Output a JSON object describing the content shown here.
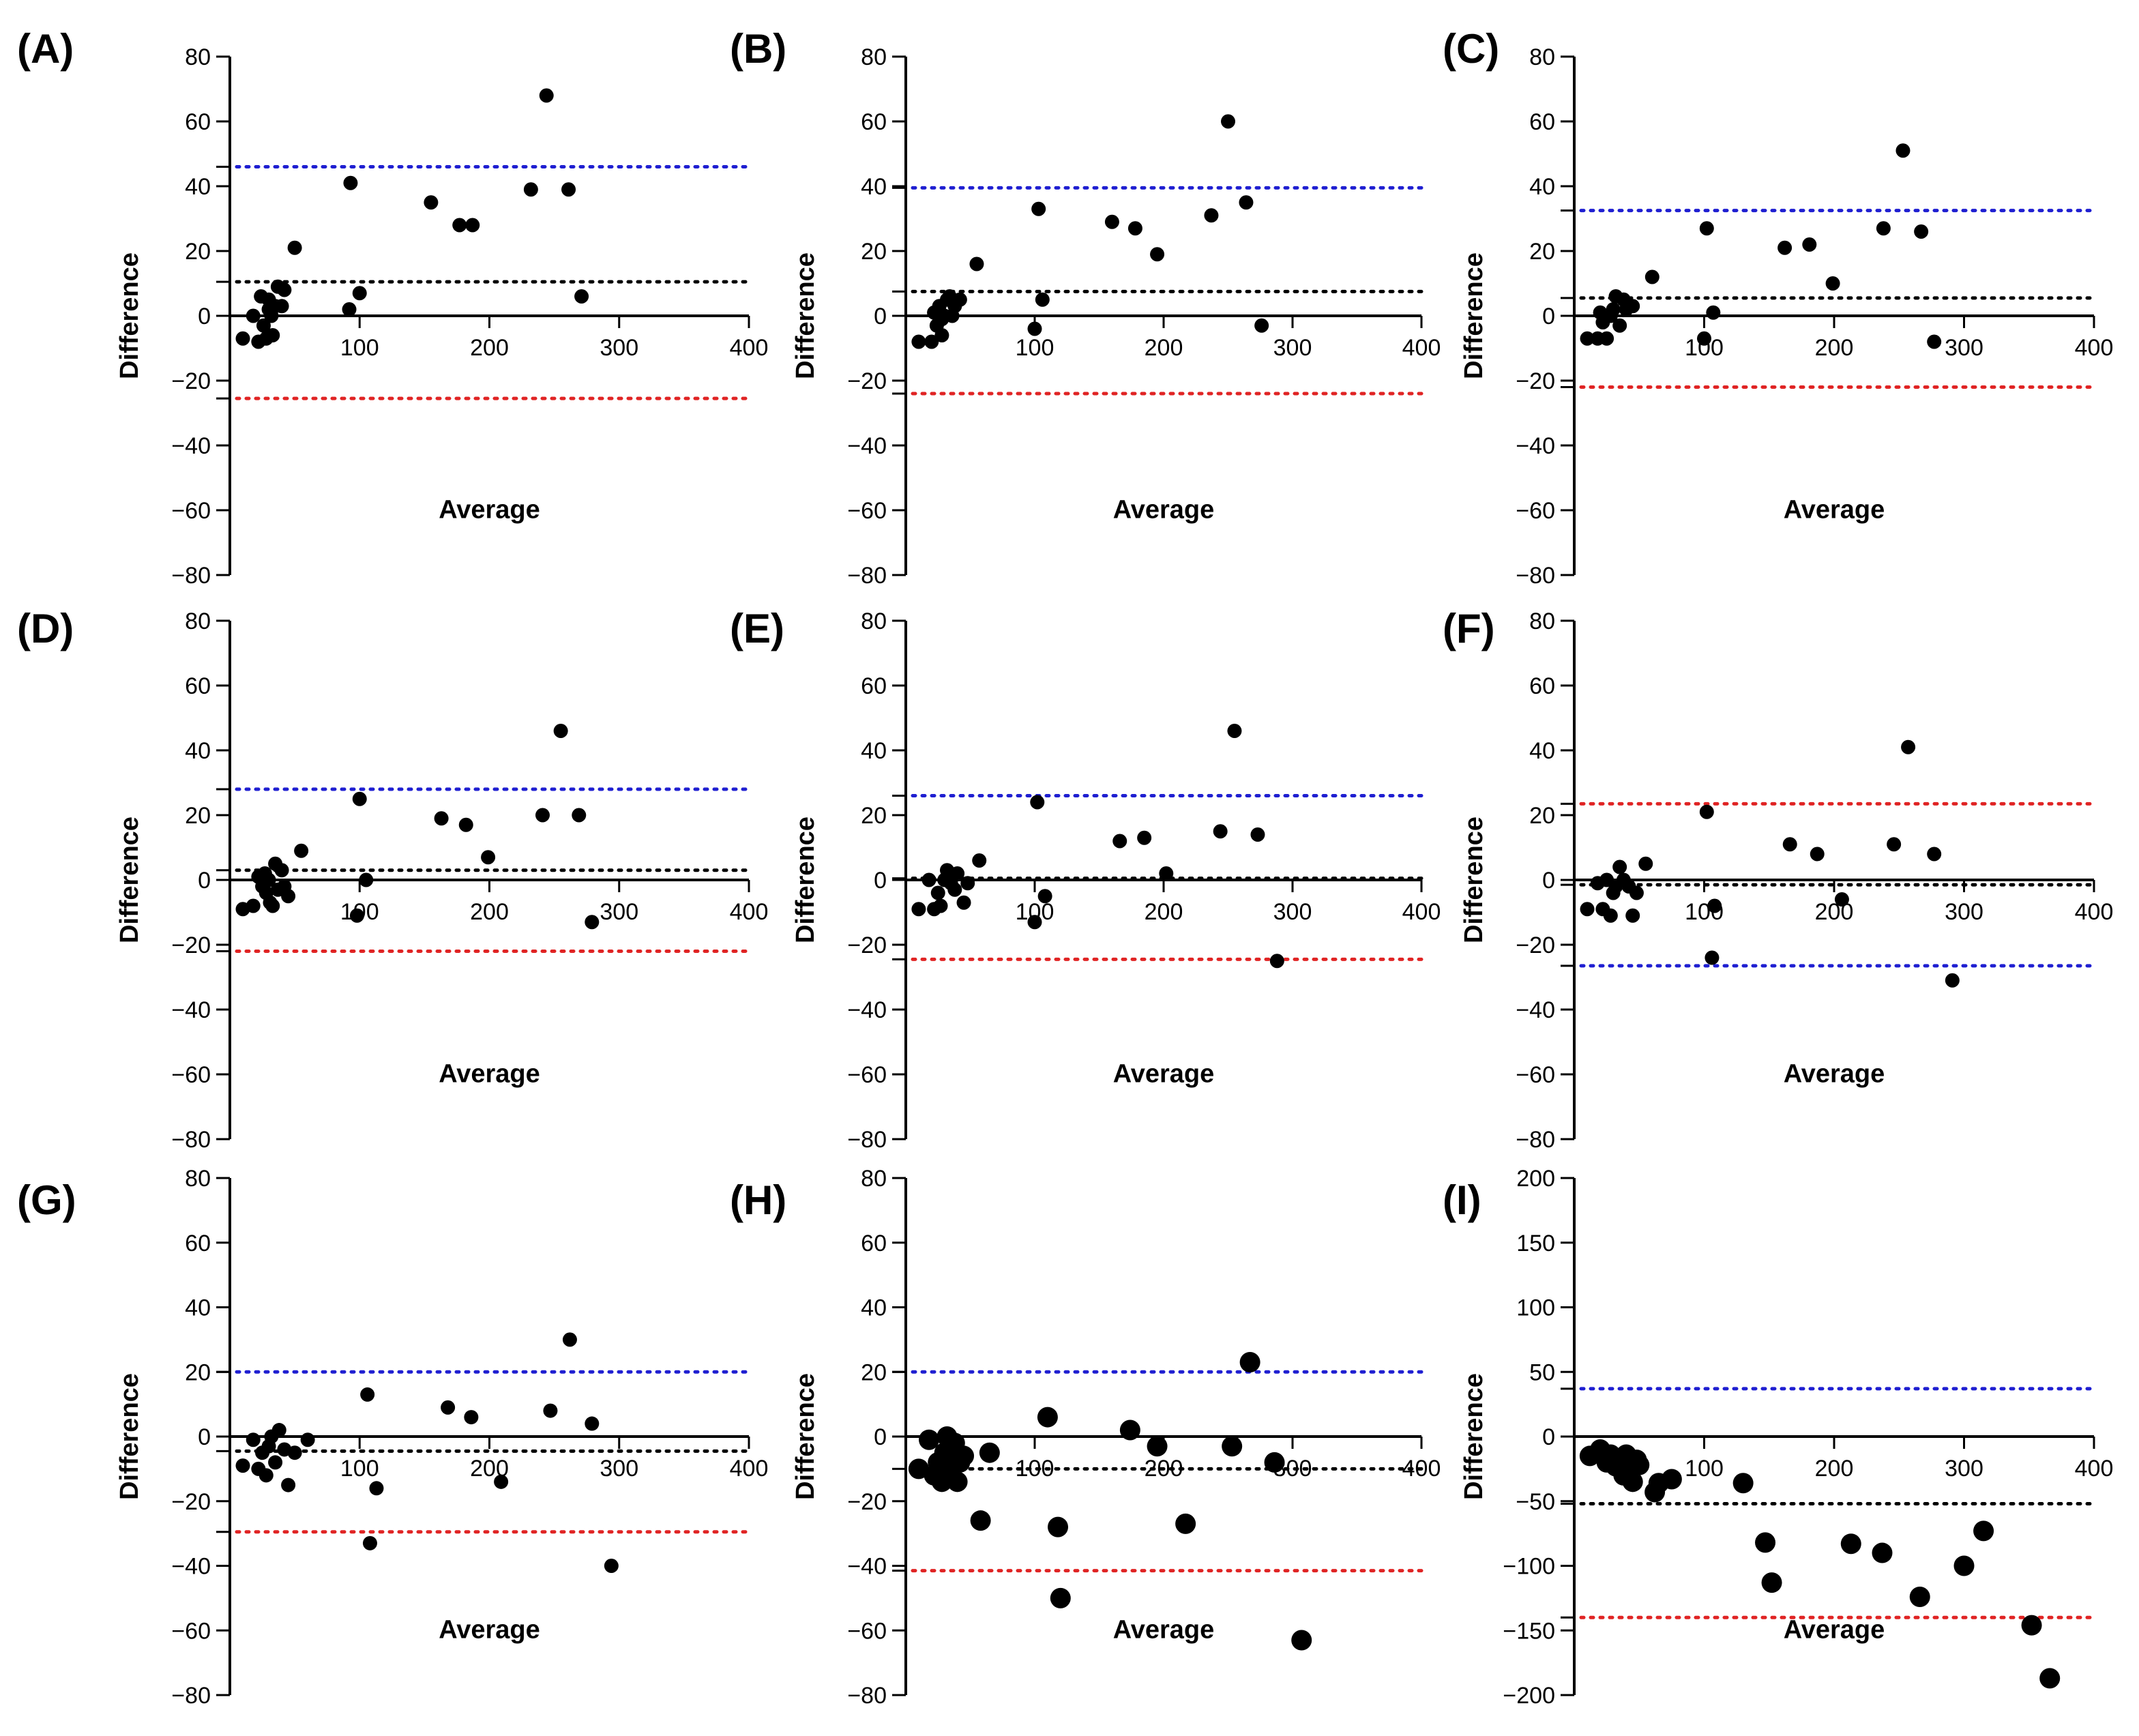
{
  "figure": {
    "colors": {
      "upper": "#1f1fd1",
      "lower": "#e02424",
      "bias": "#000000",
      "point": "#000000"
    },
    "xlabel": "Average",
    "ylabel": "Difference"
  },
  "chart_data": [
    {
      "id": "A",
      "label": "(A)",
      "type": "scatter",
      "xlim": [
        0,
        400
      ],
      "ylim": [
        -80,
        80
      ],
      "xticks": [
        100,
        200,
        300,
        400
      ],
      "yticks": [
        -80,
        -60,
        -40,
        -20,
        0,
        20,
        40,
        60,
        80
      ],
      "xlabel": "Average",
      "ylabel": "Difference",
      "lines": {
        "upper": 46,
        "bias": 10.5,
        "lower": -25.5
      },
      "marker": "small",
      "x": [
        10,
        18,
        22,
        24,
        26,
        28,
        30,
        30,
        32,
        33,
        35,
        37,
        40,
        42,
        50,
        92,
        93,
        100,
        155,
        177,
        187,
        232,
        244,
        261,
        271
      ],
      "y": [
        -7,
        0,
        -8,
        6,
        -3,
        -7,
        5,
        2,
        0,
        -6,
        3,
        9,
        3,
        8,
        21,
        2,
        41,
        7,
        35,
        28,
        28,
        39,
        68,
        39,
        6
      ]
    },
    {
      "id": "B",
      "label": "(B)",
      "type": "scatter",
      "xlim": [
        0,
        400
      ],
      "ylim": [
        -80,
        80
      ],
      "xticks": [
        100,
        200,
        300,
        400
      ],
      "yticks": [
        -80,
        -60,
        -40,
        -20,
        0,
        20,
        40,
        60,
        80
      ],
      "xlabel": "Average",
      "ylabel": "Difference",
      "lines": {
        "upper": 39.5,
        "bias": 7.5,
        "lower": -24
      },
      "marker": "small",
      "x": [
        10,
        20,
        22,
        24,
        26,
        28,
        28,
        30,
        32,
        34,
        36,
        38,
        42,
        55,
        100,
        103,
        106,
        160,
        178,
        195,
        237,
        250,
        264,
        276
      ],
      "y": [
        -8,
        -8,
        1,
        -3,
        3,
        -6,
        -1,
        0,
        5,
        6,
        0,
        3,
        5,
        16,
        -4,
        33,
        5,
        29,
        27,
        19,
        31,
        60,
        35,
        -3
      ]
    },
    {
      "id": "C",
      "label": "(C)",
      "type": "scatter",
      "xlim": [
        0,
        400
      ],
      "ylim": [
        -80,
        80
      ],
      "xticks": [
        100,
        200,
        300,
        400
      ],
      "yticks": [
        -80,
        -60,
        -40,
        -20,
        0,
        20,
        40,
        60,
        80
      ],
      "xlabel": "Average",
      "ylabel": "Difference",
      "lines": {
        "upper": 32.5,
        "bias": 5.5,
        "lower": -22
      },
      "marker": "small",
      "x": [
        10,
        18,
        20,
        22,
        25,
        28,
        30,
        32,
        35,
        38,
        40,
        45,
        60,
        100,
        102,
        107,
        162,
        181,
        199,
        238,
        253,
        267,
        277
      ],
      "y": [
        -7,
        -7,
        1,
        -2,
        -7,
        0,
        2,
        6,
        -3,
        5,
        2,
        3,
        12,
        -7,
        27,
        1,
        21,
        22,
        10,
        27,
        51,
        26,
        -8
      ]
    },
    {
      "id": "D",
      "label": "(D)",
      "type": "scatter",
      "xlim": [
        0,
        400
      ],
      "ylim": [
        -80,
        80
      ],
      "xticks": [
        100,
        200,
        300,
        400
      ],
      "yticks": [
        -80,
        -60,
        -40,
        -20,
        0,
        20,
        40,
        60,
        80
      ],
      "xlabel": "Average",
      "ylabel": "Difference",
      "lines": {
        "upper": 28,
        "bias": 3,
        "lower": -22
      },
      "marker": "small",
      "x": [
        10,
        18,
        22,
        25,
        27,
        28,
        30,
        31,
        33,
        35,
        37,
        40,
        42,
        45,
        55,
        98,
        100,
        105,
        163,
        182,
        199,
        241,
        255,
        269,
        279
      ],
      "y": [
        -9,
        -8,
        1,
        -2,
        2,
        -4,
        0,
        -7,
        -8,
        5,
        -3,
        3,
        -2,
        -5,
        9,
        -11,
        25,
        0,
        19,
        17,
        7,
        20,
        46,
        20,
        -13
      ]
    },
    {
      "id": "E",
      "label": "(E)",
      "type": "scatter",
      "xlim": [
        0,
        400
      ],
      "ylim": [
        -80,
        80
      ],
      "xticks": [
        100,
        200,
        300,
        400
      ],
      "yticks": [
        -80,
        -60,
        -40,
        -20,
        0,
        20,
        40,
        60,
        80
      ],
      "xlabel": "Average",
      "ylabel": "Difference",
      "lines": {
        "upper": 26,
        "bias": 0.5,
        "lower": -24.5
      },
      "marker": "small",
      "x": [
        10,
        18,
        22,
        25,
        27,
        30,
        32,
        35,
        38,
        40,
        45,
        48,
        57,
        100,
        102,
        108,
        166,
        185,
        202,
        244,
        255,
        273,
        288
      ],
      "y": [
        -9,
        0,
        -9,
        -4,
        -8,
        0,
        3,
        -1,
        -3,
        2,
        -7,
        -1,
        6,
        -13,
        24,
        -5,
        12,
        13,
        2,
        15,
        46,
        14,
        -25
      ]
    },
    {
      "id": "F",
      "label": "(F)",
      "type": "scatter",
      "xlim": [
        0,
        400
      ],
      "ylim": [
        -80,
        80
      ],
      "xticks": [
        100,
        200,
        300,
        400
      ],
      "yticks": [
        -80,
        -60,
        -40,
        -20,
        0,
        20,
        40,
        60,
        80
      ],
      "xlabel": "Average",
      "ylabel": "Difference",
      "lines": {
        "upper": 23.5,
        "bias": -1.5,
        "lower": -26.5
      },
      "color_swap": true,
      "marker": "small",
      "x": [
        10,
        18,
        22,
        25,
        28,
        30,
        32,
        35,
        38,
        42,
        45,
        48,
        55,
        102,
        106,
        108,
        166,
        187,
        206,
        246,
        257,
        277,
        291
      ],
      "y": [
        -9,
        -1,
        -9,
        0,
        -11,
        -4,
        -2,
        4,
        0,
        -2,
        -11,
        -4,
        5,
        21,
        -24,
        -8,
        11,
        8,
        -6,
        11,
        41,
        8,
        -31
      ]
    },
    {
      "id": "G",
      "label": "(G)",
      "type": "scatter",
      "xlim": [
        0,
        400
      ],
      "ylim": [
        -80,
        80
      ],
      "xticks": [
        100,
        200,
        300,
        400
      ],
      "yticks": [
        -80,
        -60,
        -40,
        -20,
        0,
        20,
        40,
        60,
        80
      ],
      "xlabel": "Average",
      "ylabel": "Difference",
      "lines": {
        "upper": 20,
        "bias": -4.5,
        "lower": -29.5
      },
      "marker": "small",
      "x": [
        10,
        18,
        22,
        25,
        28,
        30,
        32,
        35,
        38,
        42,
        45,
        50,
        60,
        106,
        108,
        113,
        168,
        186,
        209,
        247,
        262,
        279,
        294
      ],
      "y": [
        -9,
        -1,
        -10,
        -5,
        -12,
        -3,
        0,
        -8,
        2,
        -4,
        -15,
        -5,
        -1,
        13,
        -33,
        -16,
        9,
        6,
        -14,
        8,
        30,
        4,
        -40
      ]
    },
    {
      "id": "H",
      "label": "(H)",
      "type": "scatter",
      "xlim": [
        0,
        400
      ],
      "ylim": [
        -80,
        80
      ],
      "xticks": [
        100,
        200,
        300,
        400
      ],
      "yticks": [
        -80,
        -60,
        -40,
        -20,
        0,
        20,
        40,
        60,
        80
      ],
      "xlabel": "Average",
      "ylabel": "Difference",
      "lines": {
        "upper": 20,
        "bias": -10,
        "lower": -41.5
      },
      "marker": "large",
      "x": [
        10,
        18,
        22,
        25,
        28,
        30,
        32,
        35,
        38,
        40,
        42,
        45,
        58,
        65,
        110,
        118,
        120,
        174,
        195,
        217,
        253,
        267,
        286,
        307
      ],
      "y": [
        -10,
        -1,
        -12,
        -8,
        -14,
        -5,
        0,
        -10,
        -2,
        -14,
        -8,
        -6,
        -26,
        -5,
        6,
        -28,
        -50,
        2,
        -3,
        -27,
        -3,
        23,
        -8,
        -63
      ]
    },
    {
      "id": "I",
      "label": "(I)",
      "type": "scatter",
      "xlim": [
        0,
        400
      ],
      "ylim": [
        -200,
        200
      ],
      "xticks": [
        100,
        200,
        300,
        400
      ],
      "yticks": [
        -200,
        -150,
        -100,
        -50,
        0,
        50,
        100,
        150,
        200
      ],
      "xlabel": "Average",
      "ylabel": "Difference",
      "lines": {
        "upper": 37,
        "bias": -52,
        "lower": -140
      },
      "marker": "large",
      "x": [
        12,
        20,
        25,
        28,
        32,
        35,
        38,
        40,
        42,
        45,
        48,
        50,
        62,
        65,
        75,
        130,
        147,
        152,
        213,
        237,
        266,
        300,
        315,
        352,
        366
      ],
      "y": [
        -15,
        -10,
        -20,
        -14,
        -23,
        -18,
        -30,
        -14,
        -24,
        -35,
        -18,
        -22,
        -43,
        -36,
        -33,
        -36,
        -82,
        -113,
        -83,
        -90,
        -124,
        -100,
        -73,
        -146,
        -187
      ]
    }
  ]
}
